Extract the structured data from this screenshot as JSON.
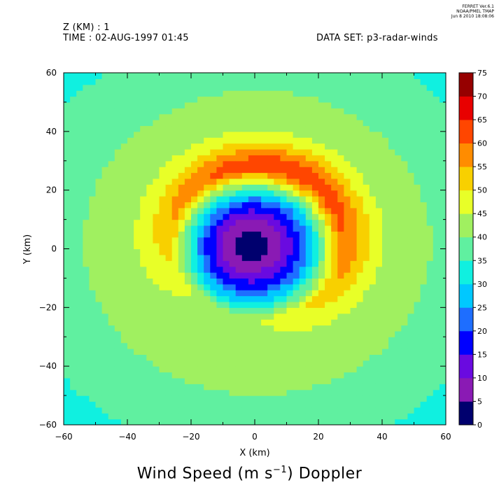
{
  "header": {
    "z_label": "Z (KM) : 1",
    "time_label": "TIME : 02-AUG-1997 01:45",
    "dataset_label": "DATA SET: p3-radar-winds"
  },
  "ferret_stamp": {
    "line1": "FERRET  Ver.6.1",
    "line2": "NOAA/PMEL TMAP",
    "line3": "Jun  8 2010 18:08:06"
  },
  "title": {
    "main_prefix": "Wind Speed (m s",
    "main_sup": "−1",
    "main_suffix": ") Doppler"
  },
  "chart_data": {
    "type": "heatmap",
    "xlabel": "X (km)",
    "ylabel": "Y (km)",
    "xlim": [
      -60,
      60
    ],
    "ylim": [
      -60,
      60
    ],
    "xticks": [
      -60,
      -40,
      -20,
      0,
      20,
      40,
      60
    ],
    "yticks": [
      -60,
      -40,
      -20,
      0,
      20,
      40,
      60
    ],
    "xtick_labels": [
      "−60",
      "−40",
      "−20",
      "0",
      "20",
      "40",
      "60"
    ],
    "ytick_labels": [
      "−60",
      "−40",
      "−20",
      "0",
      "20",
      "40",
      "60"
    ],
    "colorbar": {
      "levels": [
        0,
        5,
        10,
        15,
        20,
        25,
        30,
        35,
        40,
        45,
        50,
        55,
        60,
        65,
        70,
        75
      ],
      "labels": [
        "0",
        "5",
        "10",
        "15",
        "20",
        "25",
        "30",
        "35",
        "40",
        "45",
        "50",
        "55",
        "60",
        "65",
        "70",
        "75"
      ],
      "colors": [
        "#00006e",
        "#8a1ab4",
        "#6a0ae0",
        "#0000ff",
        "#1e6eff",
        "#00c8ff",
        "#10f0e0",
        "#60f0a0",
        "#a0f060",
        "#e8ff28",
        "#f8d000",
        "#ff8c00",
        "#ff4600",
        "#e80000",
        "#960000"
      ]
    },
    "field_description": "Hurricane wind speed field: calm eye (<5 m/s) near (-2, 1) km, eyewall maximum 60-65 m/s on northern/north-eastern side near 22-30 km radius, 40-50 m/s background decreasing to 25-35 m/s at the domain edges.",
    "features": {
      "eye_center": [
        -2,
        1
      ],
      "eye_min": 2,
      "rmw_km": 27,
      "max_wind": 64,
      "outer_wind": 34
    }
  }
}
